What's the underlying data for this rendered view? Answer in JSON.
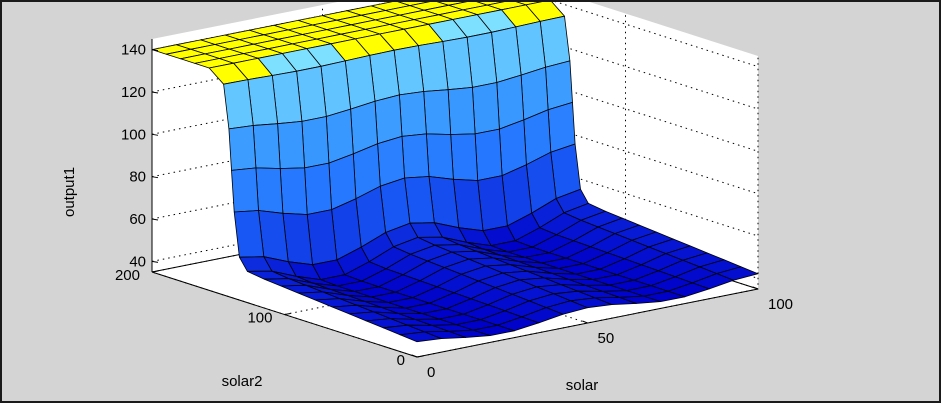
{
  "chart_data": {
    "type": "surface",
    "title": "",
    "x_label": "solar",
    "y_label": "solar2",
    "z_label": "output1",
    "x_ticks": [
      "0",
      "50",
      "100"
    ],
    "y_ticks": [
      "0",
      "100",
      "200"
    ],
    "z_ticks": [
      "40",
      "60",
      "80",
      "100",
      "120",
      "140"
    ],
    "x_range": [
      0,
      100
    ],
    "y_range": [
      0,
      200
    ],
    "z_range": [
      35,
      145
    ],
    "grid": true,
    "colormap": [
      "#0000c8",
      "#1e6cff",
      "#3c9cff",
      "#7de0ff",
      "#ffff00"
    ],
    "surface_description_levels": {
      "plateau_level": 140,
      "low_level_range": [
        38,
        50
      ],
      "step_at_solar2": 140
    }
  }
}
